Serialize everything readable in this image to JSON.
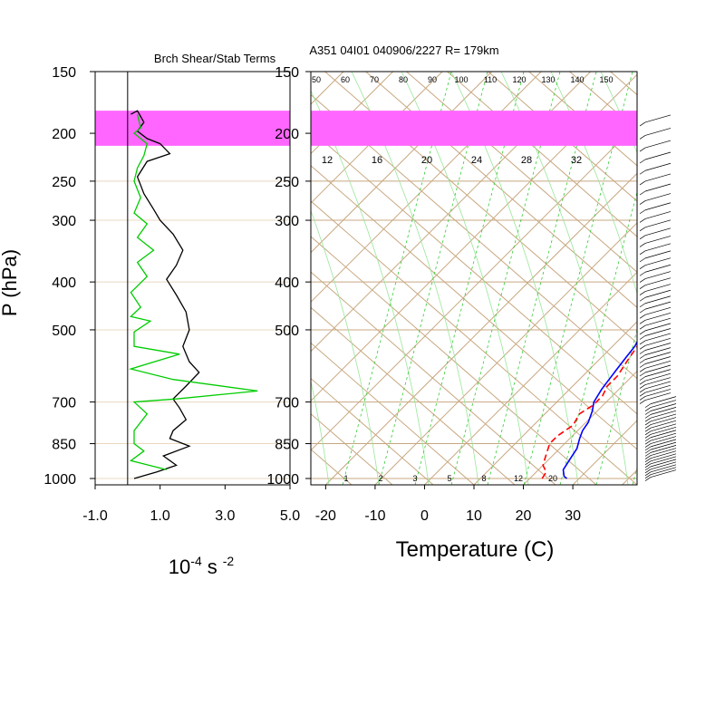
{
  "title": "A351 04I01 040906/2227 R= 179km",
  "left_panel_title": "Brch Shear/Stab Terms",
  "y_axis_label": "P (hPa)",
  "left_x_label": {
    "base": "10",
    "exp1": "-4",
    "unit": "s",
    "exp2": "-2"
  },
  "right_x_label": "Temperature (C)",
  "colors": {
    "temperature": "#0000ff",
    "dewpoint": "#ff0000",
    "shear_term": "#000000",
    "stability_term": "#00cc00",
    "highlight_band": "#ff66ff",
    "grid": "#c8a880",
    "mixing_ratio": "#33cc33"
  },
  "chart_data": [
    {
      "type": "line",
      "panel": "shear-stability",
      "title": "Brch Shear/Stab Terms",
      "xlabel": "10-4 s-2",
      "ylabel": "P (hPa)",
      "y_scale": "log",
      "ylim": [
        1030,
        150
      ],
      "xlim": [
        -1.0,
        5.0
      ],
      "x_ticks": [
        "-1.0",
        "1.0",
        "3.0",
        "5.0"
      ],
      "y_ticks": [
        150,
        200,
        250,
        300,
        400,
        500,
        700,
        850,
        1000
      ],
      "highlight_band_hpa": [
        180,
        212
      ],
      "series": [
        {
          "role": "shear",
          "color": "#000000",
          "points": [
            [
              0.1,
              183
            ],
            [
              0.3,
              180
            ],
            [
              0.5,
              190
            ],
            [
              0.3,
              198
            ],
            [
              0.6,
              205
            ],
            [
              1.0,
              210
            ],
            [
              1.3,
              220
            ],
            [
              0.6,
              228
            ],
            [
              0.3,
              245
            ],
            [
              0.5,
              265
            ],
            [
              0.8,
              285
            ],
            [
              1.0,
              300
            ],
            [
              1.4,
              320
            ],
            [
              1.7,
              345
            ],
            [
              1.5,
              370
            ],
            [
              1.2,
              395
            ],
            [
              1.5,
              425
            ],
            [
              1.8,
              460
            ],
            [
              1.9,
              500
            ],
            [
              1.7,
              540
            ],
            [
              1.9,
              580
            ],
            [
              2.2,
              610
            ],
            [
              1.8,
              650
            ],
            [
              1.4,
              690
            ],
            [
              1.6,
              720
            ],
            [
              1.8,
              760
            ],
            [
              1.4,
              800
            ],
            [
              1.3,
              830
            ],
            [
              1.9,
              860
            ],
            [
              1.1,
              900
            ],
            [
              1.5,
              940
            ],
            [
              0.9,
              970
            ],
            [
              0.2,
              1000
            ]
          ]
        },
        {
          "role": "stability",
          "color": "#00cc00",
          "points": [
            [
              0.3,
              183
            ],
            [
              0.4,
              195
            ],
            [
              0.2,
              200
            ],
            [
              0.6,
              210
            ],
            [
              0.5,
              222
            ],
            [
              0.3,
              235
            ],
            [
              0.2,
              250
            ],
            [
              0.4,
              270
            ],
            [
              0.2,
              290
            ],
            [
              0.6,
              305
            ],
            [
              0.3,
              325
            ],
            [
              0.8,
              345
            ],
            [
              0.3,
              365
            ],
            [
              0.6,
              390
            ],
            [
              0.1,
              420
            ],
            [
              0.4,
              450
            ],
            [
              0.1,
              470
            ],
            [
              0.7,
              480
            ],
            [
              0.2,
              505
            ],
            [
              0.2,
              540
            ],
            [
              1.6,
              560
            ],
            [
              0.1,
              600
            ],
            [
              1.4,
              630
            ],
            [
              4.0,
              665
            ],
            [
              1.5,
              690
            ],
            [
              0.2,
              700
            ],
            [
              0.6,
              740
            ],
            [
              0.2,
              800
            ],
            [
              0.2,
              850
            ],
            [
              0.5,
              880
            ],
            [
              0.1,
              920
            ],
            [
              1.2,
              960
            ]
          ]
        }
      ]
    },
    {
      "type": "line",
      "panel": "skew-t",
      "xlabel": "Temperature (C)",
      "ylabel": "P (hPa)",
      "y_scale": "log",
      "xlim": [
        -23,
        43
      ],
      "ylim": [
        1030,
        150
      ],
      "x_ticks": [
        -20,
        -10,
        0,
        10,
        20,
        30
      ],
      "y_ticks": [
        150,
        200,
        250,
        300,
        400,
        500,
        700,
        850,
        1000
      ],
      "mixing_ratio_labels_top": [
        "12",
        "16",
        "20",
        "24",
        "28",
        "32"
      ],
      "mixing_ratio_labels_bottom": [
        "1",
        "2",
        "3",
        "5",
        "8",
        "12",
        "20"
      ],
      "adiabat_labels": [
        "50",
        "60",
        "70",
        "80",
        "90",
        "100",
        "110",
        "120",
        "130",
        "140",
        "150"
      ],
      "series": [
        {
          "role": "temperature",
          "color": "#0000ff",
          "points": [
            [
              27.5,
              1000
            ],
            [
              26.5,
              990
            ],
            [
              25,
              960
            ],
            [
              24.5,
              930
            ],
            [
              24,
              900
            ],
            [
              23.5,
              870
            ],
            [
              22,
              830
            ],
            [
              21,
              800
            ],
            [
              20.5,
              770
            ],
            [
              19,
              730
            ],
            [
              17.5,
              700
            ],
            [
              16.5,
              660
            ],
            [
              16,
              630
            ],
            [
              15.5,
              600
            ],
            [
              15,
              570
            ],
            [
              14.5,
              540
            ],
            [
              13,
              500
            ],
            [
              11.5,
              460
            ],
            [
              10.5,
              420
            ],
            [
              8,
              385
            ],
            [
              5.5,
              350
            ],
            [
              2,
              320
            ],
            [
              -2,
              285
            ],
            [
              -6,
              250
            ],
            [
              -10,
              222
            ],
            [
              -14,
              200
            ],
            [
              -20,
              175
            ]
          ]
        },
        {
          "role": "dewpoint",
          "color": "#ff0000",
          "points": [
            [
              22.5,
              1000
            ],
            [
              22,
              970
            ],
            [
              20,
              940
            ],
            [
              19,
              910
            ],
            [
              18,
              880
            ],
            [
              17,
              850
            ],
            [
              17,
              820
            ],
            [
              18,
              780
            ],
            [
              17,
              740
            ],
            [
              18,
              710
            ],
            [
              18,
              680
            ],
            [
              17,
              650
            ],
            [
              17,
              620
            ],
            [
              16,
              580
            ],
            [
              15,
              540
            ],
            [
              13.5,
              500
            ],
            [
              12,
              460
            ],
            [
              10.5,
              420
            ],
            [
              8,
              390
            ],
            [
              5,
              350
            ],
            [
              1,
              320
            ],
            [
              -3,
              290
            ],
            [
              -7,
              260
            ],
            [
              -12,
              235
            ],
            [
              -16,
              215
            ],
            [
              -18,
              205
            ]
          ]
        }
      ],
      "wind_barbs": "column of wind barbs along right edge, 190-1000 hPa"
    }
  ]
}
